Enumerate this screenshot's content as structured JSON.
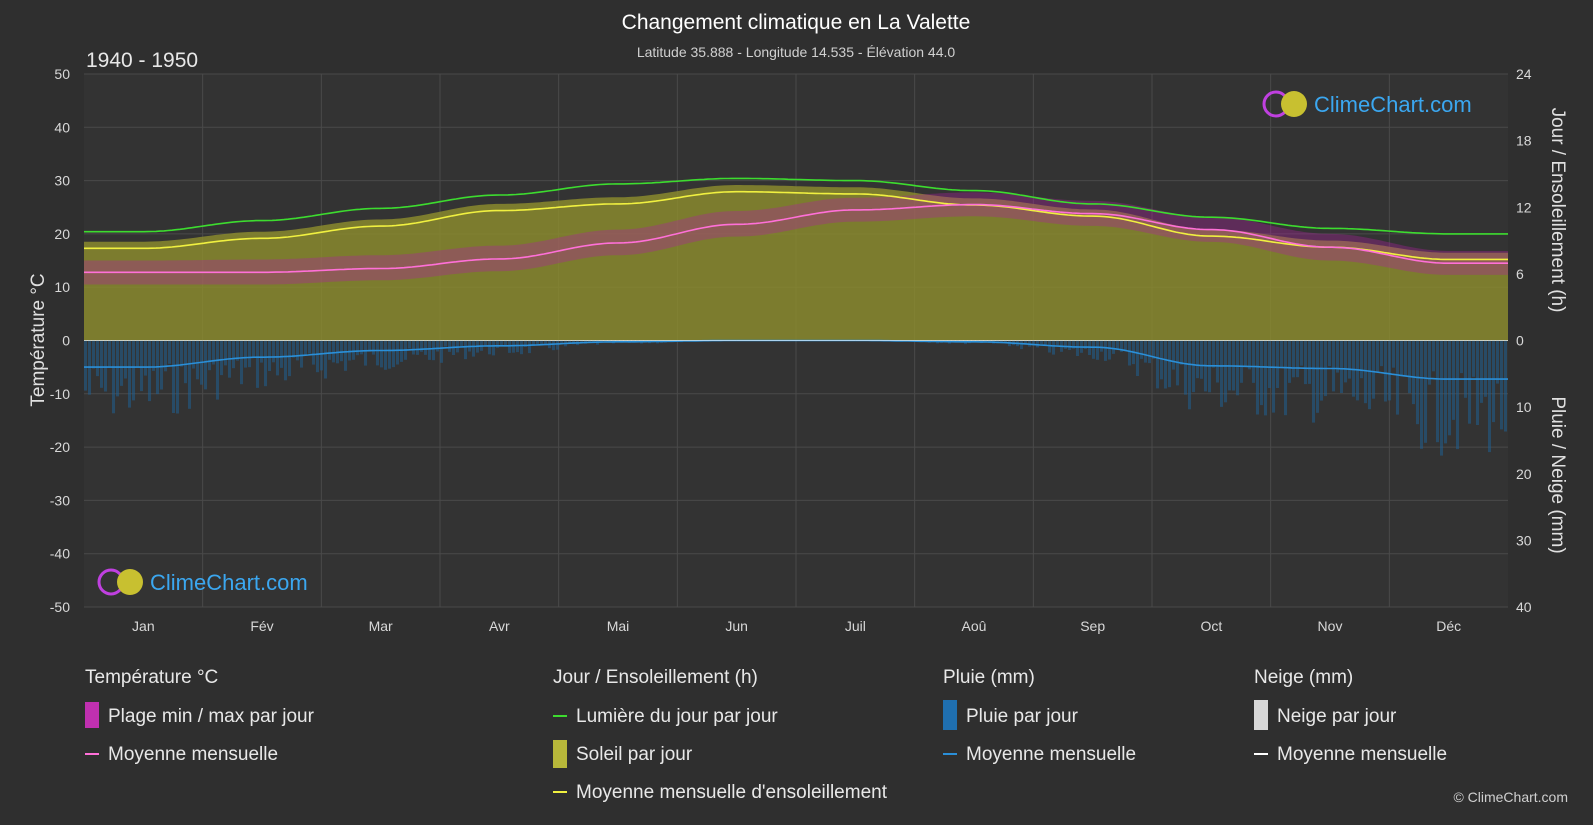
{
  "title": "Changement climatique en La Valette",
  "subtitle": "Latitude 35.888 - Longitude 14.535 - Élévation 44.0",
  "period": "1940 - 1950",
  "brand": "ClimeChart.com",
  "copyright": "© ClimeChart.com",
  "colors": {
    "background": "#2f2f2f",
    "daylight": "#3ddc2f",
    "sunshine_line": "#f0f040",
    "sunshine_fill": "#8a8a2e",
    "temp_line": "#ff70d8",
    "temp_band": "#b020a0",
    "rain_line": "#2a8fd8",
    "rain_bar": "#1f5f8f",
    "snow_line": "#ffffff"
  },
  "chart_data": {
    "type": "area",
    "categories": [
      "Jan",
      "Fév",
      "Mar",
      "Avr",
      "Mai",
      "Jun",
      "Juil",
      "Aoû",
      "Sep",
      "Oct",
      "Nov",
      "Déc"
    ],
    "left_axis": {
      "label": "Température °C",
      "ylim": [
        -50,
        50
      ],
      "ticks": [
        50,
        40,
        30,
        20,
        10,
        0,
        -10,
        -20,
        -30,
        -40,
        -50
      ]
    },
    "right_axis_top": {
      "label": "Jour / Ensoleillement (h)",
      "ylim": [
        0,
        24
      ],
      "ticks": [
        24,
        18,
        12,
        6,
        0
      ]
    },
    "right_axis_bottom": {
      "label": "Pluie / Neige (mm)",
      "ylim": [
        0,
        40
      ],
      "ticks": [
        0,
        10,
        20,
        30,
        40
      ]
    },
    "grid": true,
    "series": [
      {
        "name": "Lumière du jour par jour",
        "axis": "hours",
        "values": [
          9.8,
          10.8,
          11.9,
          13.1,
          14.1,
          14.6,
          14.4,
          13.5,
          12.3,
          11.1,
          10.1,
          9.6
        ]
      },
      {
        "name": "Moyenne mensuelle d'ensoleillement",
        "axis": "hours",
        "values": [
          8.3,
          9.2,
          10.3,
          11.7,
          12.3,
          13.4,
          13.2,
          12.2,
          11.2,
          9.4,
          8.4,
          7.3
        ]
      },
      {
        "name": "Moyenne mensuelle",
        "kind": "temperature",
        "axis": "temp",
        "values": [
          12.8,
          12.8,
          13.5,
          15.3,
          18.3,
          21.8,
          24.5,
          25.5,
          23.8,
          20.8,
          17.5,
          14.5
        ]
      },
      {
        "name": "Moyenne mensuelle",
        "kind": "rain",
        "axis": "precip",
        "values": [
          4.0,
          2.5,
          1.5,
          0.8,
          0.2,
          0.0,
          0.0,
          0.2,
          1.0,
          3.8,
          4.2,
          5.8
        ]
      },
      {
        "name": "Plage min / max par jour",
        "kind": "temp_range",
        "axis": "temp",
        "min": [
          10.5,
          10.5,
          11.3,
          13.0,
          16.0,
          19.5,
          22.3,
          23.3,
          21.5,
          18.5,
          15.0,
          12.3
        ],
        "max": [
          15.0,
          15.2,
          16.0,
          17.8,
          20.8,
          24.3,
          26.8,
          27.8,
          26.2,
          23.2,
          20.0,
          16.8
        ]
      }
    ]
  },
  "legend": {
    "temperature": {
      "heading": "Température °C",
      "items": [
        "Plage min / max par jour",
        "Moyenne mensuelle"
      ]
    },
    "sun": {
      "heading": "Jour / Ensoleillement (h)",
      "items": [
        "Lumière du jour par jour",
        "Soleil par jour",
        "Moyenne mensuelle d'ensoleillement"
      ]
    },
    "rain": {
      "heading": "Pluie (mm)",
      "items": [
        "Pluie par jour",
        "Moyenne mensuelle"
      ]
    },
    "snow": {
      "heading": "Neige (mm)",
      "items": [
        "Neige par jour",
        "Moyenne mensuelle"
      ]
    }
  }
}
